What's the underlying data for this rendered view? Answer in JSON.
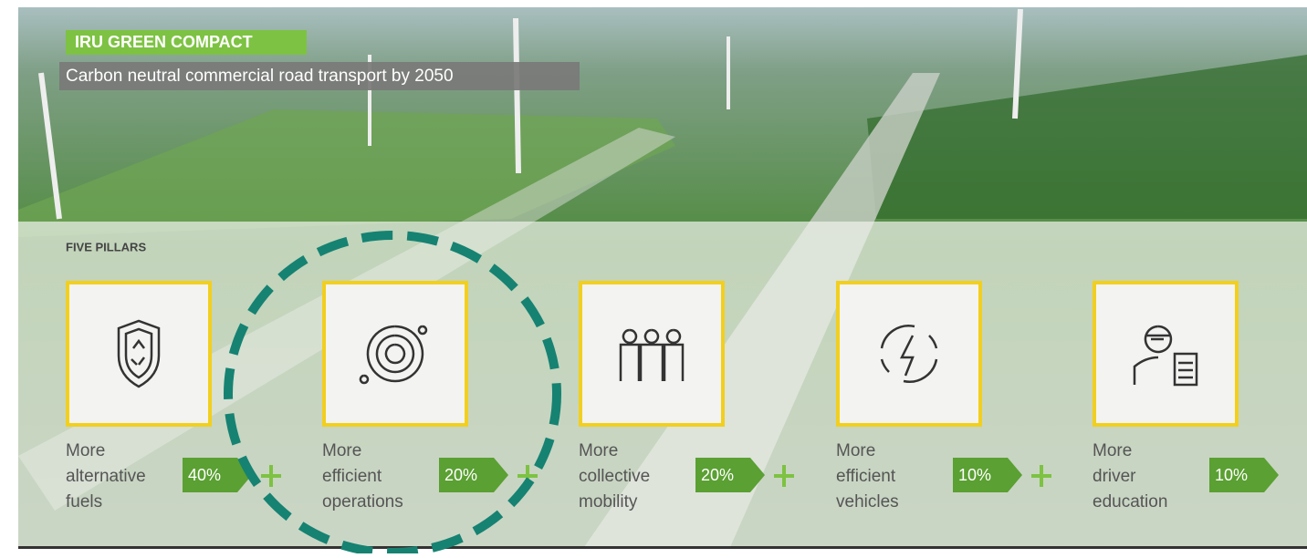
{
  "header": {
    "badge": "IRU GREEN COMPACT",
    "subtitle": "Carbon neutral commercial road transport by 2050"
  },
  "section_title": "FIVE PILLARS",
  "pillars": [
    {
      "label_lines": [
        "More",
        "alternative",
        "fuels"
      ],
      "share": "40%"
    },
    {
      "label_lines": [
        "More",
        "efficient",
        "operations"
      ],
      "share": "20%"
    },
    {
      "label_lines": [
        "More",
        "collective",
        "mobility"
      ],
      "share": "20%"
    },
    {
      "label_lines": [
        "More",
        "efficient",
        "vehicles"
      ],
      "share": "10%"
    },
    {
      "label_lines": [
        "More",
        "driver",
        "education"
      ],
      "share": "10%"
    }
  ]
}
